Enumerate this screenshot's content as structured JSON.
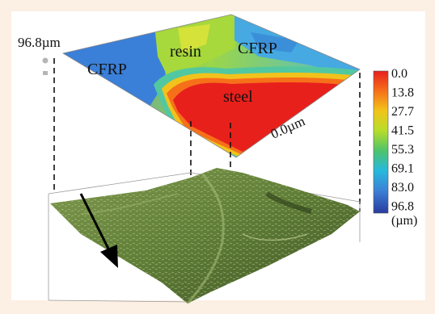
{
  "figure": {
    "surface_labels": {
      "top_value": "96.8µm",
      "bottom_value": "0.0µm",
      "regions": [
        "CFRP",
        "resin",
        "CFRP",
        "steel"
      ]
    },
    "colorbar": {
      "ticks": [
        "0.0",
        "13.8",
        "27.7",
        "41.5",
        "55.3",
        "69.1",
        "83.0",
        "96.8"
      ],
      "unit": "(µm)",
      "colors": [
        "#e8201c",
        "#f6701a",
        "#f2c41a",
        "#b7dd2a",
        "#4ec46a",
        "#27b9dd",
        "#3b82d6",
        "#2a3aa0"
      ]
    },
    "arrow_icon": "down-right-arrow-icon"
  }
}
